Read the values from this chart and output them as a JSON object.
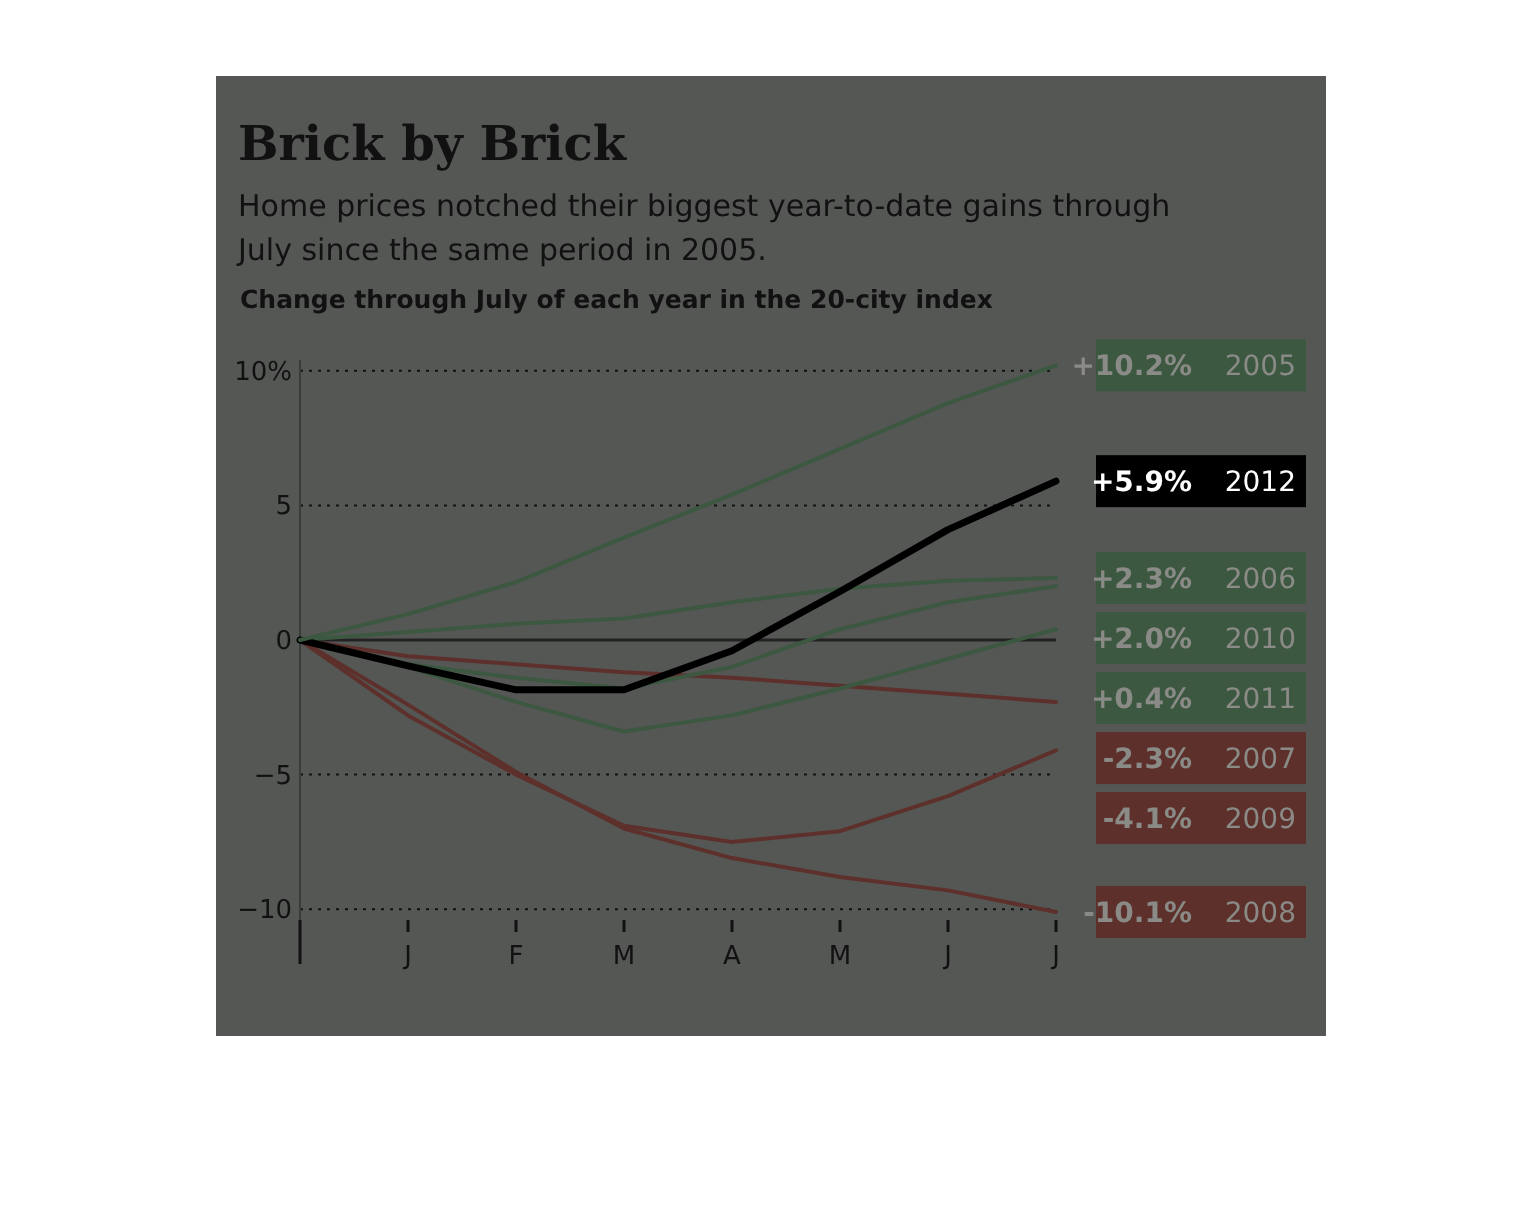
{
  "chart_data": {
    "type": "line",
    "title": "Brick by Brick",
    "subtitle": "Home prices notched their biggest year-to-date gains through July since the same period in 2005.",
    "ylabel": "Change through July of each year in the 20-city index",
    "categories": [
      null,
      "J",
      "F",
      "M",
      "A",
      "M",
      "J",
      "J"
    ],
    "series": [
      {
        "name": "2005",
        "color": "#3c5840",
        "values": [
          0,
          0.96,
          2.15,
          3.8,
          5.4,
          7.1,
          8.8,
          10.2
        ],
        "value_labels": [
          null,
          null,
          null,
          null,
          null,
          null,
          null,
          "+10.2%"
        ]
      },
      {
        "name": "2012",
        "color": "#000000",
        "values": [
          0,
          -0.96,
          -1.85,
          -1.85,
          -0.4,
          1.8,
          4.1,
          5.9
        ],
        "value_labels": [
          null,
          null,
          null,
          null,
          null,
          null,
          null,
          "+5.9%"
        ]
      },
      {
        "name": "2006",
        "color": "#3c5840",
        "values": [
          0,
          0.3,
          0.6,
          0.8,
          1.4,
          1.9,
          2.2,
          2.3
        ],
        "value_labels": [
          null,
          null,
          null,
          null,
          null,
          null,
          null,
          "+2.3%"
        ]
      },
      {
        "name": "2010",
        "color": "#3c5840",
        "values": [
          0,
          -0.9,
          -1.4,
          -1.8,
          -1.0,
          0.4,
          1.4,
          2.0
        ],
        "value_labels": [
          null,
          null,
          null,
          null,
          null,
          null,
          null,
          "+2.0%"
        ]
      },
      {
        "name": "2011",
        "color": "#3c5840",
        "values": [
          0,
          -1.0,
          -2.3,
          -3.4,
          -2.8,
          -1.8,
          -0.7,
          0.4
        ],
        "value_labels": [
          null,
          null,
          null,
          null,
          null,
          null,
          null,
          "+0.4%"
        ]
      },
      {
        "name": "2007",
        "color": "#5e302b",
        "values": [
          0,
          -0.6,
          -0.9,
          -1.2,
          -1.4,
          -1.7,
          -2.0,
          -2.3
        ],
        "value_labels": [
          null,
          null,
          null,
          null,
          null,
          null,
          null,
          "-2.3%"
        ]
      },
      {
        "name": "2009",
        "color": "#5e302b",
        "values": [
          0,
          -2.8,
          -5.0,
          -6.9,
          -7.5,
          -7.1,
          -5.8,
          -4.1
        ],
        "value_labels": [
          null,
          null,
          null,
          null,
          null,
          null,
          null,
          "-4.1%"
        ]
      },
      {
        "name": "2008",
        "color": "#5e302b",
        "values": [
          0,
          -2.4,
          -4.9,
          -7.0,
          -8.1,
          -8.8,
          -9.3,
          -10.1
        ],
        "value_labels": [
          null,
          null,
          null,
          null,
          null,
          null,
          null,
          "-10.1%"
        ]
      }
    ],
    "ylim": [
      -10.4,
      10.4
    ],
    "yticks": [
      {
        "value": 10,
        "label": "10%"
      },
      5,
      0,
      {
        "value": -5,
        "label": "−5"
      },
      {
        "value": -10,
        "label": "−10"
      }
    ],
    "ref_lines": [
      {
        "axis": "y",
        "value": 0,
        "color": "#222222"
      }
    ],
    "grid": "y",
    "line_style": "solid",
    "marker": "none"
  }
}
